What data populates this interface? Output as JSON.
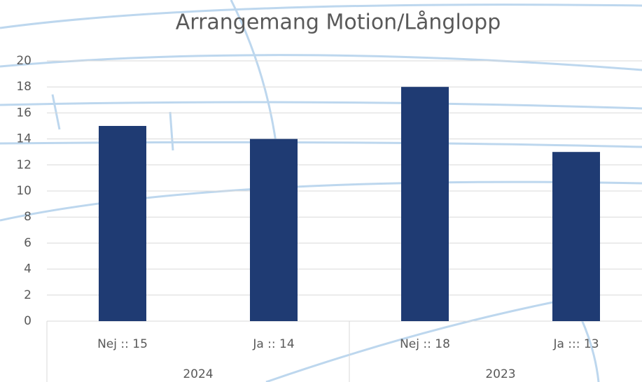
{
  "chart_data": {
    "type": "bar",
    "title": "Arrangemang Motion/Långlopp",
    "categories": [
      "Nej :: 15",
      "Ja :: 14",
      "Nej :: 18",
      "Ja ::: 13"
    ],
    "groups": [
      "2024",
      "2023"
    ],
    "values": [
      15,
      14,
      18,
      13
    ],
    "color": "#1f3b73",
    "ylim": [
      0,
      20
    ],
    "yticks": [
      0,
      2,
      4,
      6,
      8,
      10,
      12,
      14,
      16,
      18,
      20
    ],
    "grid": true
  }
}
